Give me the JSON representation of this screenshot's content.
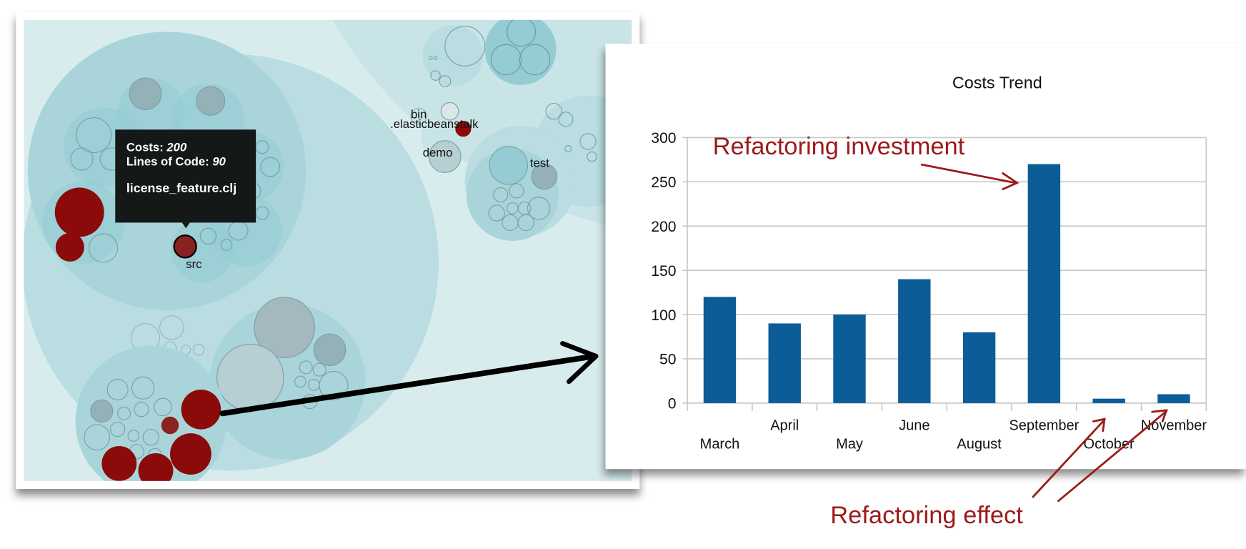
{
  "visualization": {
    "tooltip": {
      "costs_label": "Costs: ",
      "costs_value": "200",
      "loc_label": "Lines of Code: ",
      "loc_value": "90",
      "file_name": "license_feature.clj"
    },
    "labels": {
      "src": "src",
      "bin": "bin",
      "elasticbeanstalk": ".elasticbeanstalk",
      "demo": "demo",
      "test": "test"
    },
    "colors": {
      "hotspot": "#8b0a0a",
      "circle": "#a9d5da",
      "background": "#d8ecee"
    }
  },
  "chart_data": {
    "type": "bar",
    "title": "Costs Trend",
    "xlabel": "",
    "ylabel": "",
    "categories": [
      "March",
      "April",
      "May",
      "June",
      "August",
      "September",
      "October",
      "November"
    ],
    "values": [
      120,
      90,
      100,
      140,
      80,
      270,
      5,
      10
    ],
    "ylim": [
      0,
      300
    ],
    "yticks": [
      0,
      50,
      100,
      150,
      200,
      250,
      300
    ],
    "grid": true,
    "legend": "none",
    "bar_color": "#0b5c97"
  },
  "annotations": {
    "investment": "Refactoring investment",
    "effect": "Refactoring effect",
    "color": "#9b1b1b"
  }
}
